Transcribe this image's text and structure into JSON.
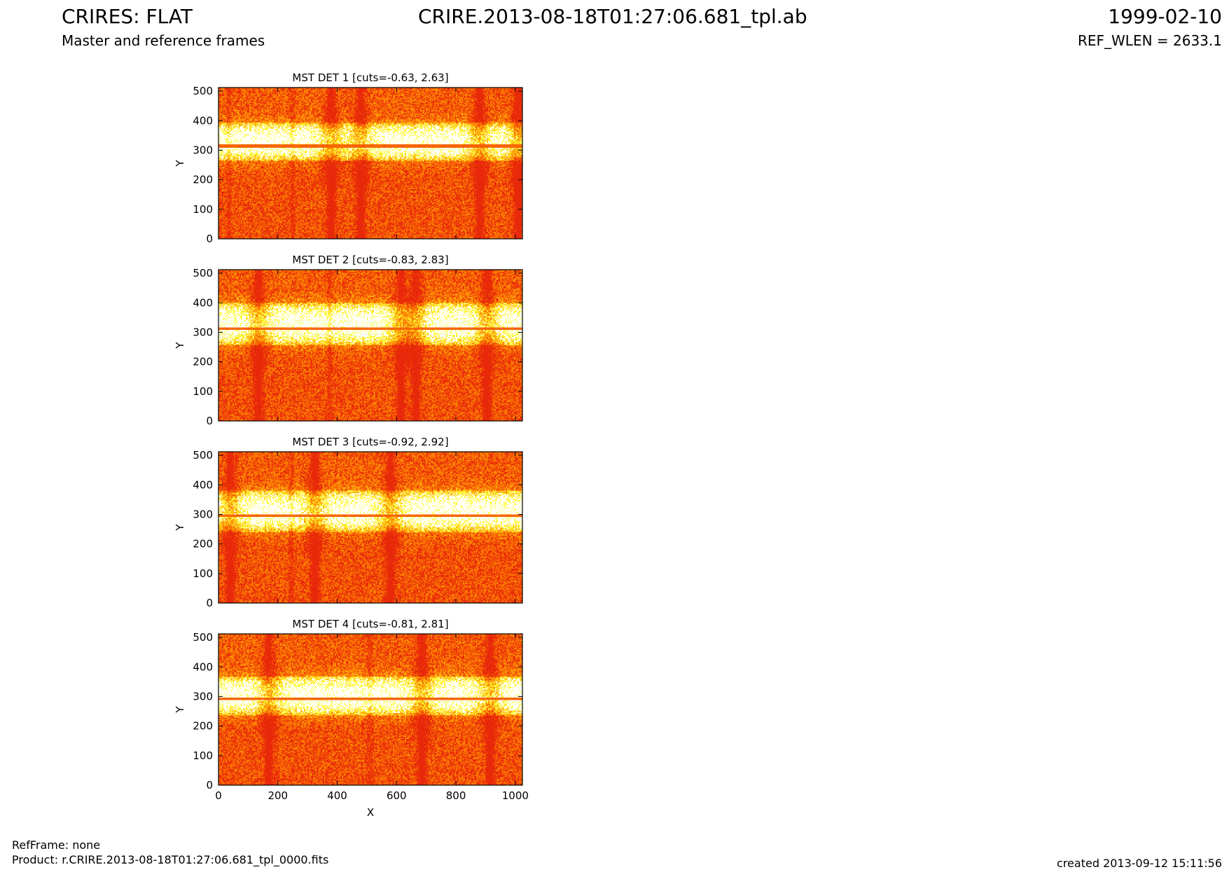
{
  "header": {
    "title_left": "CRIRES: FLAT",
    "title_center": "CRIRE.2013-08-18T01:27:06.681_tpl.ab",
    "title_right": "1999-02-10",
    "subtitle_left": "Master and reference frames",
    "subtitle_right": "REF_WLEN = 2633.1"
  },
  "footer": {
    "ref_frame": "RefFrame: none",
    "product": "Product: r.CRIRE.2013-08-18T01:27:06.681_tpl_0000.fits",
    "created": "created 2013-09-12 15:11:56"
  },
  "colors": {
    "background_low": "#e8280a",
    "mid": "#ff8c00",
    "high": "#ffff33",
    "saturated": "#ffffff",
    "band": "#ee5a0e"
  },
  "chart_data": [
    {
      "type": "heatmap",
      "title": "MST DET 1 [cuts=-0.63, 2.63]",
      "xlabel": "",
      "ylabel": "Y",
      "xlim": [
        0,
        1024
      ],
      "ylim": [
        0,
        512
      ],
      "xticks": [
        0,
        200,
        400,
        600,
        800,
        1000
      ],
      "yticks": [
        0,
        100,
        200,
        300,
        400,
        500
      ],
      "cuts": [
        -0.63,
        2.63
      ],
      "bright_band_y": [
        262,
        392
      ],
      "order_line_y": 314,
      "dark_columns_x": [
        380,
        480,
        880,
        1010
      ],
      "faint_columns_x": [
        35,
        250
      ]
    },
    {
      "type": "heatmap",
      "title": "MST DET 2 [cuts=-0.83, 2.83]",
      "xlabel": "",
      "ylabel": "Y",
      "xlim": [
        0,
        1024
      ],
      "ylim": [
        0,
        512
      ],
      "xticks": [
        0,
        200,
        400,
        600,
        800,
        1000
      ],
      "yticks": [
        0,
        100,
        200,
        300,
        400,
        500
      ],
      "cuts": [
        -0.83,
        2.83
      ],
      "bright_band_y": [
        255,
        400
      ],
      "order_line_y": 313,
      "dark_columns_x": [
        135,
        615,
        665,
        905
      ],
      "faint_columns_x": [
        375
      ]
    },
    {
      "type": "heatmap",
      "title": "MST DET 3 [cuts=-0.92, 2.92]",
      "xlabel": "",
      "ylabel": "Y",
      "xlim": [
        0,
        1024
      ],
      "ylim": [
        0,
        512
      ],
      "xticks": [
        0,
        200,
        400,
        600,
        800,
        1000
      ],
      "yticks": [
        0,
        100,
        200,
        300,
        400,
        500
      ],
      "cuts": [
        -0.92,
        2.92
      ],
      "bright_band_y": [
        240,
        380
      ],
      "order_line_y": 297,
      "dark_columns_x": [
        40,
        325,
        580
      ],
      "faint_columns_x": [
        245
      ]
    },
    {
      "type": "heatmap",
      "title": "MST DET 4 [cuts=-0.81, 2.81]",
      "xlabel": "X",
      "ylabel": "Y",
      "xlim": [
        0,
        1024
      ],
      "ylim": [
        0,
        512
      ],
      "xticks": [
        0,
        200,
        400,
        600,
        800,
        1000
      ],
      "yticks": [
        0,
        100,
        200,
        300,
        400,
        500
      ],
      "cuts": [
        -0.81,
        2.81
      ],
      "bright_band_y": [
        235,
        370
      ],
      "order_line_y": 291,
      "dark_columns_x": [
        170,
        685,
        915
      ],
      "faint_columns_x": [
        510
      ]
    }
  ]
}
